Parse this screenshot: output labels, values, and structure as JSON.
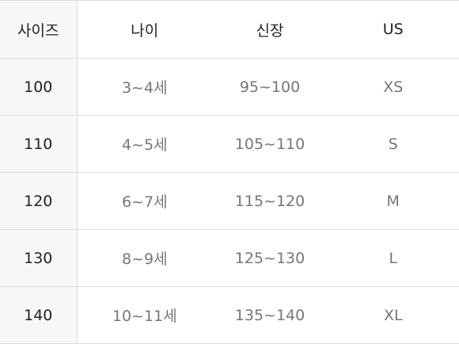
{
  "table": {
    "headers": [
      "사이즈",
      "나이",
      "신장",
      "US"
    ],
    "rows": [
      [
        "100",
        "3~4세",
        "95~100",
        "XS"
      ],
      [
        "110",
        "4~5세",
        "105~110",
        "S"
      ],
      [
        "120",
        "6~7세",
        "115~120",
        "M"
      ],
      [
        "130",
        "8~9세",
        "125~130",
        "L"
      ],
      [
        "140",
        "10~11세",
        "135~140",
        "XL"
      ]
    ]
  },
  "colors": {
    "header_text": "#222222",
    "cell_text": "#777777",
    "first_column_background": "#f7f7f7",
    "border": "#dcdcdc"
  }
}
